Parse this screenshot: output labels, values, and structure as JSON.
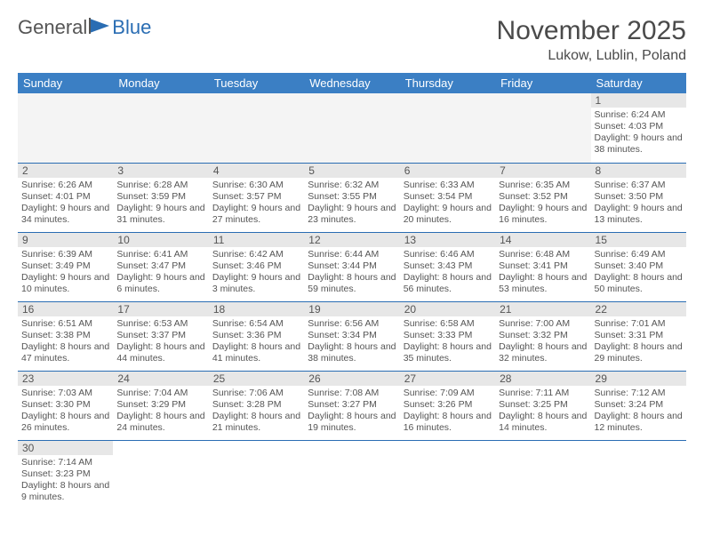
{
  "logo": {
    "text1": "General",
    "text2": "Blue",
    "flag_color": "#2a6db3"
  },
  "header": {
    "month": "November 2025",
    "location": "Lukow, Lublin, Poland"
  },
  "calendar": {
    "day_headers": [
      "Sunday",
      "Monday",
      "Tuesday",
      "Wednesday",
      "Thursday",
      "Friday",
      "Saturday"
    ],
    "header_bg": "#3b7fc4",
    "header_fg": "#ffffff",
    "row_divider_color": "#2a6db3",
    "daynum_bg": "#e7e7e7",
    "weeks": [
      [
        {
          "blank": true
        },
        {
          "blank": true
        },
        {
          "blank": true
        },
        {
          "blank": true
        },
        {
          "blank": true
        },
        {
          "blank": true
        },
        {
          "n": "1",
          "sunrise": "6:24 AM",
          "sunset": "4:03 PM",
          "dl": "9 hours and 38 minutes."
        }
      ],
      [
        {
          "n": "2",
          "sunrise": "6:26 AM",
          "sunset": "4:01 PM",
          "dl": "9 hours and 34 minutes."
        },
        {
          "n": "3",
          "sunrise": "6:28 AM",
          "sunset": "3:59 PM",
          "dl": "9 hours and 31 minutes."
        },
        {
          "n": "4",
          "sunrise": "6:30 AM",
          "sunset": "3:57 PM",
          "dl": "9 hours and 27 minutes."
        },
        {
          "n": "5",
          "sunrise": "6:32 AM",
          "sunset": "3:55 PM",
          "dl": "9 hours and 23 minutes."
        },
        {
          "n": "6",
          "sunrise": "6:33 AM",
          "sunset": "3:54 PM",
          "dl": "9 hours and 20 minutes."
        },
        {
          "n": "7",
          "sunrise": "6:35 AM",
          "sunset": "3:52 PM",
          "dl": "9 hours and 16 minutes."
        },
        {
          "n": "8",
          "sunrise": "6:37 AM",
          "sunset": "3:50 PM",
          "dl": "9 hours and 13 minutes."
        }
      ],
      [
        {
          "n": "9",
          "sunrise": "6:39 AM",
          "sunset": "3:49 PM",
          "dl": "9 hours and 10 minutes."
        },
        {
          "n": "10",
          "sunrise": "6:41 AM",
          "sunset": "3:47 PM",
          "dl": "9 hours and 6 minutes."
        },
        {
          "n": "11",
          "sunrise": "6:42 AM",
          "sunset": "3:46 PM",
          "dl": "9 hours and 3 minutes."
        },
        {
          "n": "12",
          "sunrise": "6:44 AM",
          "sunset": "3:44 PM",
          "dl": "8 hours and 59 minutes."
        },
        {
          "n": "13",
          "sunrise": "6:46 AM",
          "sunset": "3:43 PM",
          "dl": "8 hours and 56 minutes."
        },
        {
          "n": "14",
          "sunrise": "6:48 AM",
          "sunset": "3:41 PM",
          "dl": "8 hours and 53 minutes."
        },
        {
          "n": "15",
          "sunrise": "6:49 AM",
          "sunset": "3:40 PM",
          "dl": "8 hours and 50 minutes."
        }
      ],
      [
        {
          "n": "16",
          "sunrise": "6:51 AM",
          "sunset": "3:38 PM",
          "dl": "8 hours and 47 minutes."
        },
        {
          "n": "17",
          "sunrise": "6:53 AM",
          "sunset": "3:37 PM",
          "dl": "8 hours and 44 minutes."
        },
        {
          "n": "18",
          "sunrise": "6:54 AM",
          "sunset": "3:36 PM",
          "dl": "8 hours and 41 minutes."
        },
        {
          "n": "19",
          "sunrise": "6:56 AM",
          "sunset": "3:34 PM",
          "dl": "8 hours and 38 minutes."
        },
        {
          "n": "20",
          "sunrise": "6:58 AM",
          "sunset": "3:33 PM",
          "dl": "8 hours and 35 minutes."
        },
        {
          "n": "21",
          "sunrise": "7:00 AM",
          "sunset": "3:32 PM",
          "dl": "8 hours and 32 minutes."
        },
        {
          "n": "22",
          "sunrise": "7:01 AM",
          "sunset": "3:31 PM",
          "dl": "8 hours and 29 minutes."
        }
      ],
      [
        {
          "n": "23",
          "sunrise": "7:03 AM",
          "sunset": "3:30 PM",
          "dl": "8 hours and 26 minutes."
        },
        {
          "n": "24",
          "sunrise": "7:04 AM",
          "sunset": "3:29 PM",
          "dl": "8 hours and 24 minutes."
        },
        {
          "n": "25",
          "sunrise": "7:06 AM",
          "sunset": "3:28 PM",
          "dl": "8 hours and 21 minutes."
        },
        {
          "n": "26",
          "sunrise": "7:08 AM",
          "sunset": "3:27 PM",
          "dl": "8 hours and 19 minutes."
        },
        {
          "n": "27",
          "sunrise": "7:09 AM",
          "sunset": "3:26 PM",
          "dl": "8 hours and 16 minutes."
        },
        {
          "n": "28",
          "sunrise": "7:11 AM",
          "sunset": "3:25 PM",
          "dl": "8 hours and 14 minutes."
        },
        {
          "n": "29",
          "sunrise": "7:12 AM",
          "sunset": "3:24 PM",
          "dl": "8 hours and 12 minutes."
        }
      ],
      [
        {
          "n": "30",
          "sunrise": "7:14 AM",
          "sunset": "3:23 PM",
          "dl": "8 hours and 9 minutes."
        },
        {
          "blank": true
        },
        {
          "blank": true
        },
        {
          "blank": true
        },
        {
          "blank": true
        },
        {
          "blank": true
        },
        {
          "blank": true
        }
      ]
    ],
    "labels": {
      "sunrise": "Sunrise:",
      "sunset": "Sunset:",
      "daylight": "Daylight:"
    }
  }
}
